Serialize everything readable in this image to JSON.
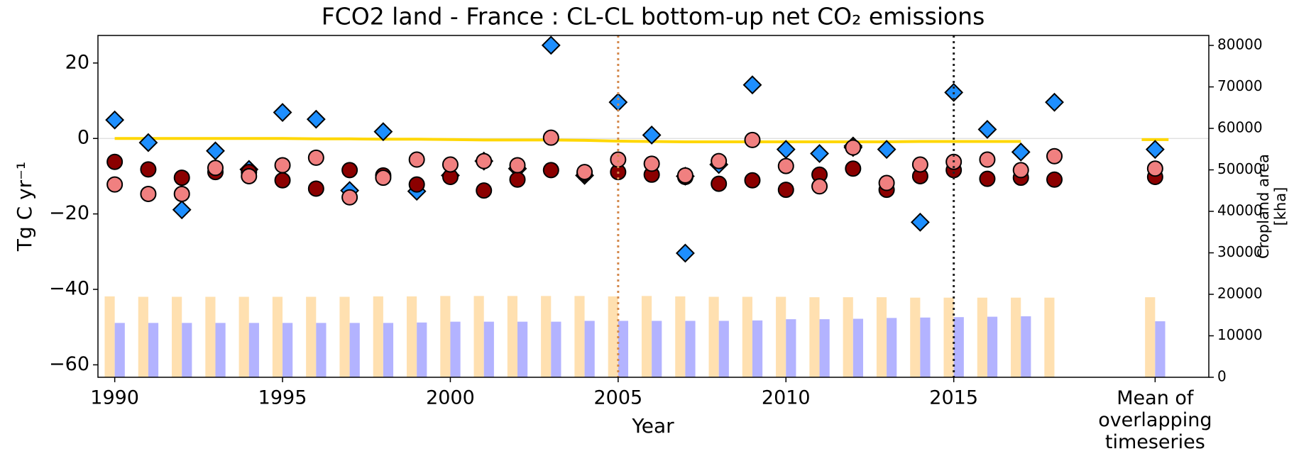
{
  "chart_data": {
    "type": "scatter",
    "title": "FCO2 land - France : CL-CL bottom-up net CO₂ emissions",
    "xlabel": "Year",
    "ylabel": "Tg C yr⁻¹",
    "y2label": "Cropland area\n[kha]",
    "x": [
      1990,
      1991,
      1992,
      1993,
      1994,
      1995,
      1996,
      1997,
      1998,
      1999,
      2000,
      2001,
      2002,
      2003,
      2004,
      2005,
      2006,
      2007,
      2008,
      2009,
      2010,
      2011,
      2012,
      2013,
      2014,
      2015,
      2016,
      2017,
      2018,
      2021
    ],
    "xlim": [
      1989.5,
      2022.6
    ],
    "xticks": [
      1990,
      1995,
      2000,
      2005,
      2010,
      2015,
      {
        "value": 2021,
        "label": "Mean of\noverlapping\ntimeseries"
      }
    ],
    "ylim": [
      -63.3,
      27.3
    ],
    "yticks": [
      {
        "value": -60,
        "label": "−60"
      },
      {
        "value": -40,
        "label": "−40"
      },
      {
        "value": -20,
        "label": "−20"
      },
      0,
      20
    ],
    "y2lim": [
      0,
      82400
    ],
    "y2ticks": [
      0,
      10000,
      20000,
      30000,
      40000,
      50000,
      60000,
      70000,
      80000
    ],
    "vlines": [
      {
        "x": 2005,
        "color": "#d4894c"
      },
      {
        "x": 2015,
        "color": "#222222"
      }
    ],
    "series": [
      {
        "type": "bar",
        "axis": "y2",
        "color": "#ffe0b0",
        "values": [
          19500,
          19400,
          19400,
          19400,
          19400,
          19400,
          19400,
          19400,
          19500,
          19500,
          19600,
          19600,
          19600,
          19600,
          19600,
          19500,
          19600,
          19500,
          19400,
          19400,
          19400,
          19300,
          19300,
          19300,
          19200,
          19200,
          19200,
          19200,
          19200,
          19300
        ]
      },
      {
        "type": "bar",
        "axis": "y2",
        "color": "#b3b3ff",
        "values": [
          13100,
          13100,
          13100,
          13100,
          13100,
          13100,
          13100,
          13100,
          13100,
          13200,
          13400,
          13400,
          13400,
          13400,
          13600,
          13600,
          13600,
          13600,
          13600,
          13700,
          14000,
          14000,
          14100,
          14300,
          14400,
          14500,
          14600,
          14700,
          null,
          13500
        ]
      },
      {
        "type": "line",
        "color": "#ffd700",
        "values": [
          0,
          0,
          0,
          0,
          0,
          0,
          -0.1,
          -0.1,
          -0.2,
          -0.2,
          -0.3,
          -0.4,
          -0.4,
          -0.4,
          -0.5,
          -0.7,
          -0.8,
          -0.9,
          -0.9,
          -0.9,
          -0.9,
          -0.9,
          -0.9,
          -0.9,
          -0.8,
          -0.8,
          -0.8,
          -0.8,
          null,
          -0.3
        ]
      },
      {
        "type": "scatter",
        "marker": "D",
        "color": "#1e8fff",
        "values": [
          4.9,
          -1.1,
          -18.9,
          -3.3,
          -8.2,
          6.9,
          5.1,
          -13.8,
          1.8,
          -14,
          null,
          null,
          null,
          24.7,
          null,
          9.6,
          0.9,
          -30.4,
          -6.9,
          14.2,
          -2.9,
          -4,
          -2.4,
          -2.9,
          -22.2,
          12.2,
          2.4,
          -3.6,
          9.6,
          -2.9
        ]
      },
      {
        "type": "scatter",
        "marker": "D",
        "color": "#1a1a1a",
        "values": [
          null,
          null,
          null,
          null,
          null,
          null,
          null,
          null,
          null,
          null,
          -9.8,
          -6,
          -8,
          null,
          -9.8,
          null,
          null,
          -10,
          null,
          null,
          null,
          null,
          -2,
          null,
          null,
          null,
          null,
          null,
          null,
          null
        ]
      },
      {
        "type": "scatter",
        "marker": "o",
        "color": "#8b0000",
        "values": [
          -6.2,
          -8.2,
          -10.4,
          -8.9,
          -8.9,
          -11.1,
          -13.3,
          -8.4,
          -9.8,
          -12.2,
          -10.2,
          -13.8,
          -10.9,
          -8.4,
          -9.3,
          -8.9,
          -9.6,
          -10.2,
          -12,
          -11.1,
          -13.6,
          -9.6,
          -8,
          -13.6,
          -10,
          -8.4,
          -10.7,
          -10.4,
          -10.9,
          -10.2
        ]
      },
      {
        "type": "scatter",
        "marker": "o",
        "color": "#f08080",
        "values": [
          -12.2,
          -14.7,
          -14.7,
          -7.8,
          -10,
          -7.1,
          -5.1,
          -15.6,
          -10.4,
          -5.6,
          -6.9,
          -6,
          -7.1,
          0.2,
          -8.9,
          -5.6,
          -6.7,
          -9.8,
          -6,
          -0.4,
          -7.3,
          -12.7,
          -2.4,
          -11.8,
          -6.9,
          -6.2,
          -5.6,
          -8.4,
          -4.7,
          -8
        ]
      }
    ]
  }
}
